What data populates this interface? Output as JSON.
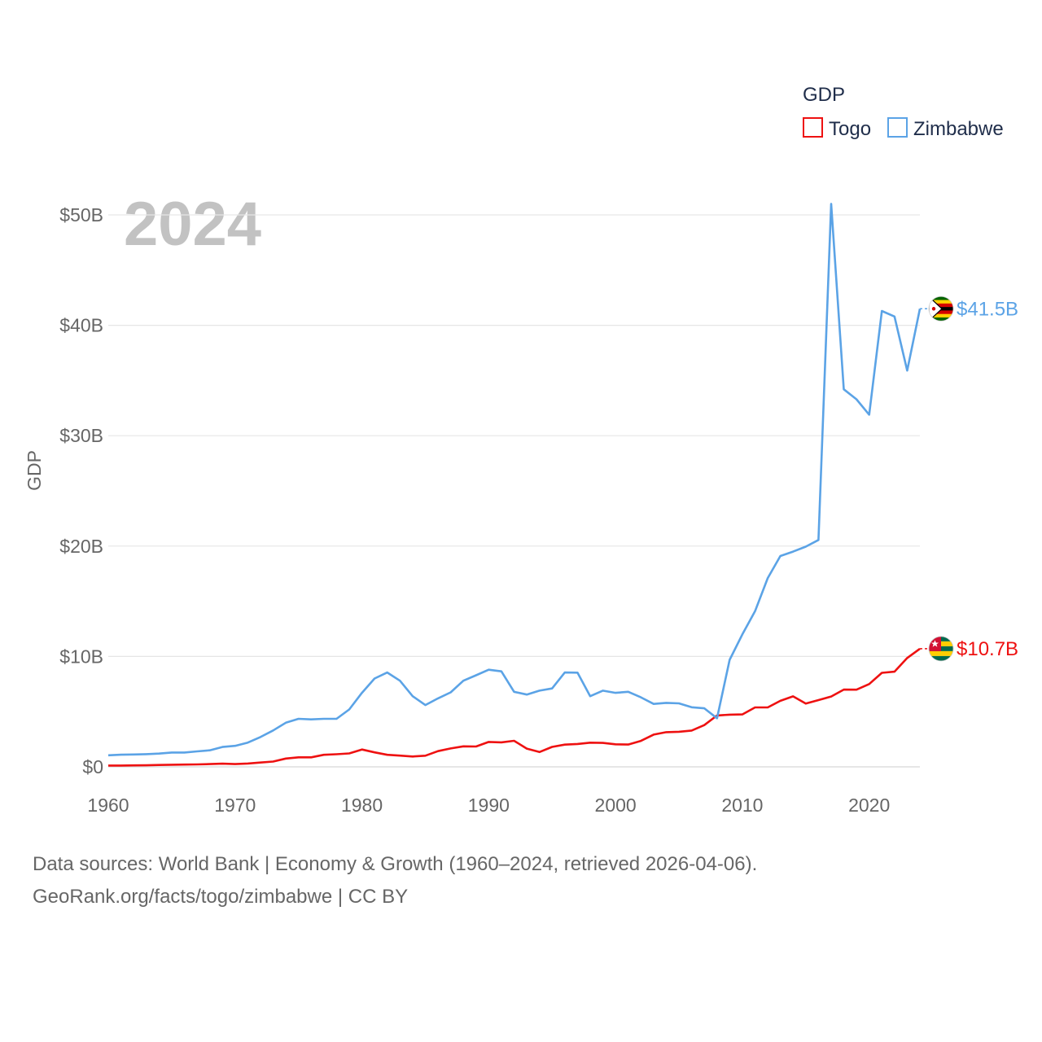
{
  "chart_data": {
    "type": "line",
    "title": "GDP",
    "year_overlay": "2024",
    "xlabel": "",
    "ylabel": "GDP",
    "xlim": [
      1960,
      2024
    ],
    "ylim": [
      0,
      50000000000
    ],
    "x_ticks": [
      1960,
      1970,
      1980,
      1990,
      2000,
      2010,
      2020
    ],
    "y_ticks": [
      {
        "value": 0,
        "label": "$0"
      },
      {
        "value": 10000000000,
        "label": "$10B"
      },
      {
        "value": 20000000000,
        "label": "$20B"
      },
      {
        "value": 30000000000,
        "label": "$30B"
      },
      {
        "value": 40000000000,
        "label": "$40B"
      },
      {
        "value": 50000000000,
        "label": "$50B"
      }
    ],
    "grid": true,
    "legend": {
      "title": "GDP",
      "position": "top-right"
    },
    "x": [
      1960,
      1961,
      1962,
      1963,
      1964,
      1965,
      1966,
      1967,
      1968,
      1969,
      1970,
      1971,
      1972,
      1973,
      1974,
      1975,
      1976,
      1977,
      1978,
      1979,
      1980,
      1981,
      1982,
      1983,
      1984,
      1985,
      1986,
      1987,
      1988,
      1989,
      1990,
      1991,
      1992,
      1993,
      1994,
      1995,
      1996,
      1997,
      1998,
      1999,
      2000,
      2001,
      2002,
      2003,
      2004,
      2005,
      2006,
      2007,
      2008,
      2009,
      2010,
      2011,
      2012,
      2013,
      2014,
      2015,
      2016,
      2017,
      2018,
      2019,
      2020,
      2021,
      2022,
      2023,
      2024
    ],
    "series": [
      {
        "name": "Togo",
        "color": "#ee1111",
        "end_label": "$10.7B",
        "flag": "togo-flag",
        "values": [
          0.12,
          0.12,
          0.13,
          0.14,
          0.17,
          0.19,
          0.21,
          0.22,
          0.25,
          0.29,
          0.25,
          0.3,
          0.39,
          0.48,
          0.75,
          0.86,
          0.86,
          1.09,
          1.14,
          1.22,
          1.57,
          1.31,
          1.09,
          1.02,
          0.94,
          1.01,
          1.42,
          1.67,
          1.86,
          1.84,
          2.26,
          2.22,
          2.36,
          1.65,
          1.34,
          1.81,
          2.01,
          2.07,
          2.19,
          2.17,
          2.04,
          2.02,
          2.35,
          2.92,
          3.14,
          3.18,
          3.29,
          3.78,
          4.65,
          4.73,
          4.75,
          5.38,
          5.38,
          5.98,
          6.39,
          5.73,
          6.05,
          6.37,
          7.0,
          6.99,
          7.5,
          8.52,
          8.62,
          9.86,
          10.7
        ]
      },
      {
        "name": "Zimbabwe",
        "color": "#5ba3e6",
        "end_label": "$41.5B",
        "flag": "zimbabwe-flag",
        "values": [
          1.05,
          1.1,
          1.12,
          1.15,
          1.2,
          1.3,
          1.3,
          1.4,
          1.5,
          1.8,
          1.9,
          2.2,
          2.7,
          3.3,
          4.0,
          4.35,
          4.3,
          4.35,
          4.35,
          5.2,
          6.7,
          8.0,
          8.55,
          7.8,
          6.4,
          5.6,
          6.2,
          6.75,
          7.8,
          8.3,
          8.8,
          8.65,
          6.8,
          6.55,
          6.9,
          7.1,
          8.55,
          8.53,
          6.4,
          6.9,
          6.7,
          6.8,
          6.3,
          5.7,
          5.8,
          5.75,
          5.4,
          5.3,
          4.4,
          9.7,
          12.0,
          14.1,
          17.1,
          19.1,
          19.5,
          19.95,
          20.55,
          51.0,
          34.2,
          33.3,
          31.9,
          41.3,
          40.8,
          35.9,
          41.5
        ]
      }
    ],
    "value_unit": "billions USD"
  },
  "footer": {
    "line1": "Data sources: World Bank | Economy & Growth (1960–2024, retrieved 2026-04-06).",
    "line2": "GeoRank.org/facts/togo/zimbabwe | CC BY"
  }
}
